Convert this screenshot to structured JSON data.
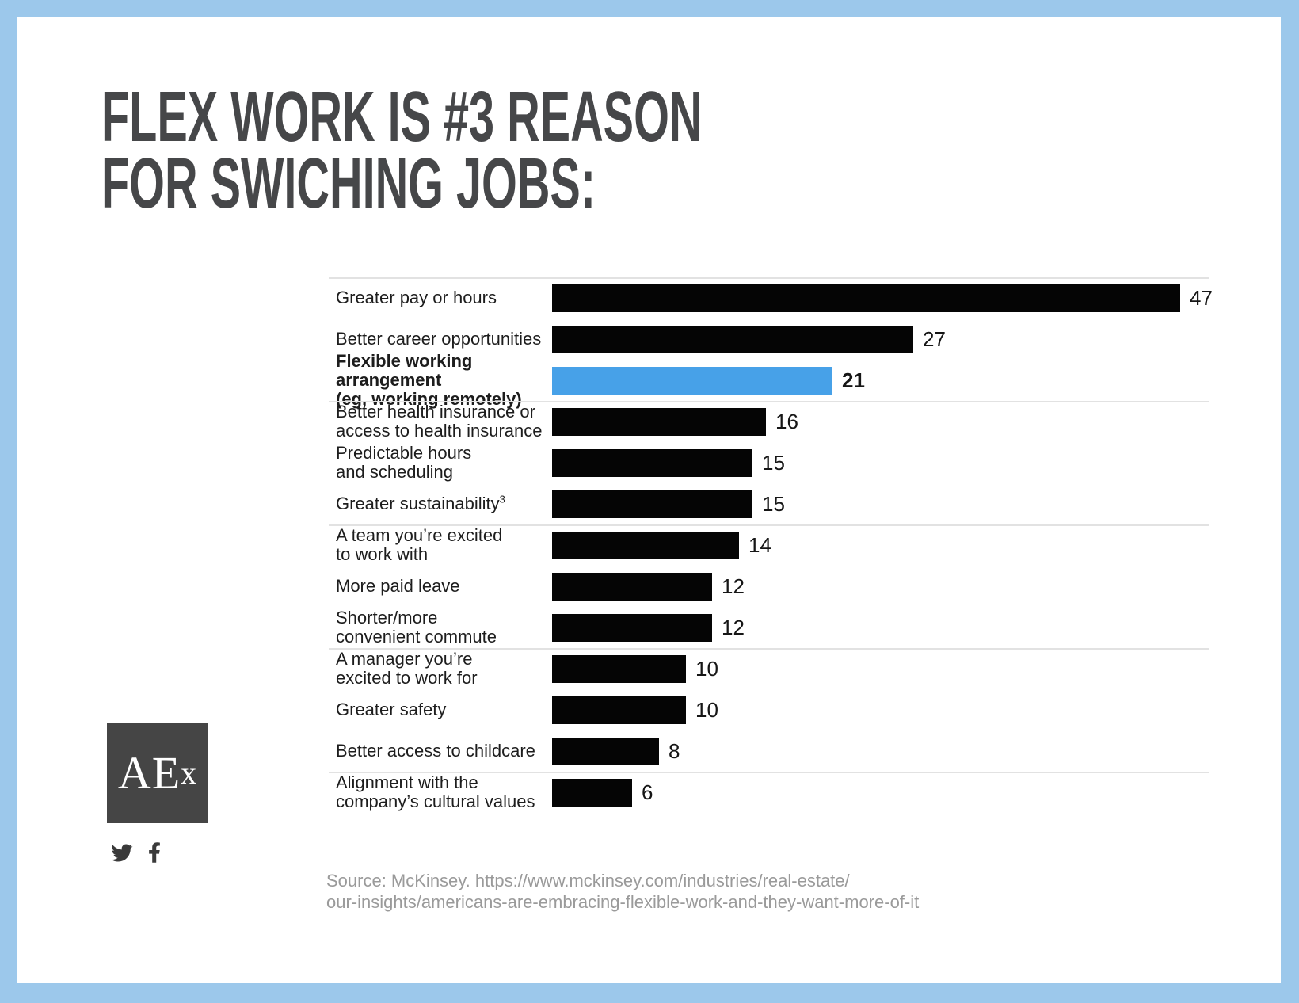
{
  "title": {
    "line1": "FLEX WORK IS #3 REASON",
    "line2": "FOR SWICHING JOBS:",
    "color": "#464749"
  },
  "chart_data": {
    "type": "bar",
    "orientation": "horizontal",
    "xlim": [
      0,
      47
    ],
    "grid": false,
    "legend": false,
    "bar_color": "#050505",
    "highlight_color": "#47a1e8",
    "highlight_index": 2,
    "categories": [
      "Greater pay or hours",
      "Better career opportunities",
      "Flexible working arrangement (eg, working remotely)",
      "Better health insurance or access to health insurance",
      "Predictable hours and scheduling",
      "Greater sustainability³",
      "A team you’re excited to work with",
      "More paid leave",
      "Shorter/more convenient commute",
      "A manager you’re excited to work for",
      "Greater safety",
      "Better access to childcare",
      "Alignment with the company’s cultural values"
    ],
    "values": [
      47,
      27,
      21,
      16,
      15,
      15,
      14,
      12,
      12,
      10,
      10,
      8,
      6
    ],
    "rows": [
      {
        "label_lines": [
          "Greater pay or hours"
        ],
        "value": 47
      },
      {
        "label_lines": [
          "Better career opportunities"
        ],
        "value": 27
      },
      {
        "label_lines": [
          "Flexible working arrangement",
          "(eg, working remotely)"
        ],
        "value": 21,
        "highlight": true,
        "bold": true
      },
      {
        "label_lines": [
          "Better health insurance or",
          "access to health insurance"
        ],
        "value": 16
      },
      {
        "label_lines": [
          "Predictable hours",
          "and scheduling"
        ],
        "value": 15
      },
      {
        "label_lines": [
          "Greater sustainability"
        ],
        "sup": "3",
        "value": 15
      },
      {
        "label_lines": [
          "A team you’re excited",
          "to work with"
        ],
        "value": 14
      },
      {
        "label_lines": [
          "More paid leave"
        ],
        "value": 12
      },
      {
        "label_lines": [
          "Shorter/more",
          "convenient commute"
        ],
        "value": 12
      },
      {
        "label_lines": [
          "A manager you’re",
          "excited to work for"
        ],
        "value": 10
      },
      {
        "label_lines": [
          "Greater safety"
        ],
        "value": 10
      },
      {
        "label_lines": [
          "Better access to childcare"
        ],
        "value": 8
      },
      {
        "label_lines": [
          "Alignment with the",
          "company’s cultural values"
        ],
        "value": 6
      }
    ],
    "top_rule": true,
    "separators_after_rows": [
      3,
      6,
      9,
      12
    ]
  },
  "logo": {
    "text_main": "AE",
    "text_small": "x",
    "background": "#454545",
    "foreground": "#ffffff"
  },
  "social": {
    "twitter_icon": "twitter-icon",
    "facebook_icon": "facebook-icon",
    "icon_color": "#3a3a3a"
  },
  "source": {
    "line1": "Source: McKinsey. https://www.mckinsey.com/industries/real-estate/",
    "line2": "our-insights/americans-are-embracing-flexible-work-and-they-want-more-of-it",
    "color": "#9a9a9a"
  },
  "frame": {
    "border_color": "#9cc8eb",
    "canvas_color": "#ffffff"
  }
}
